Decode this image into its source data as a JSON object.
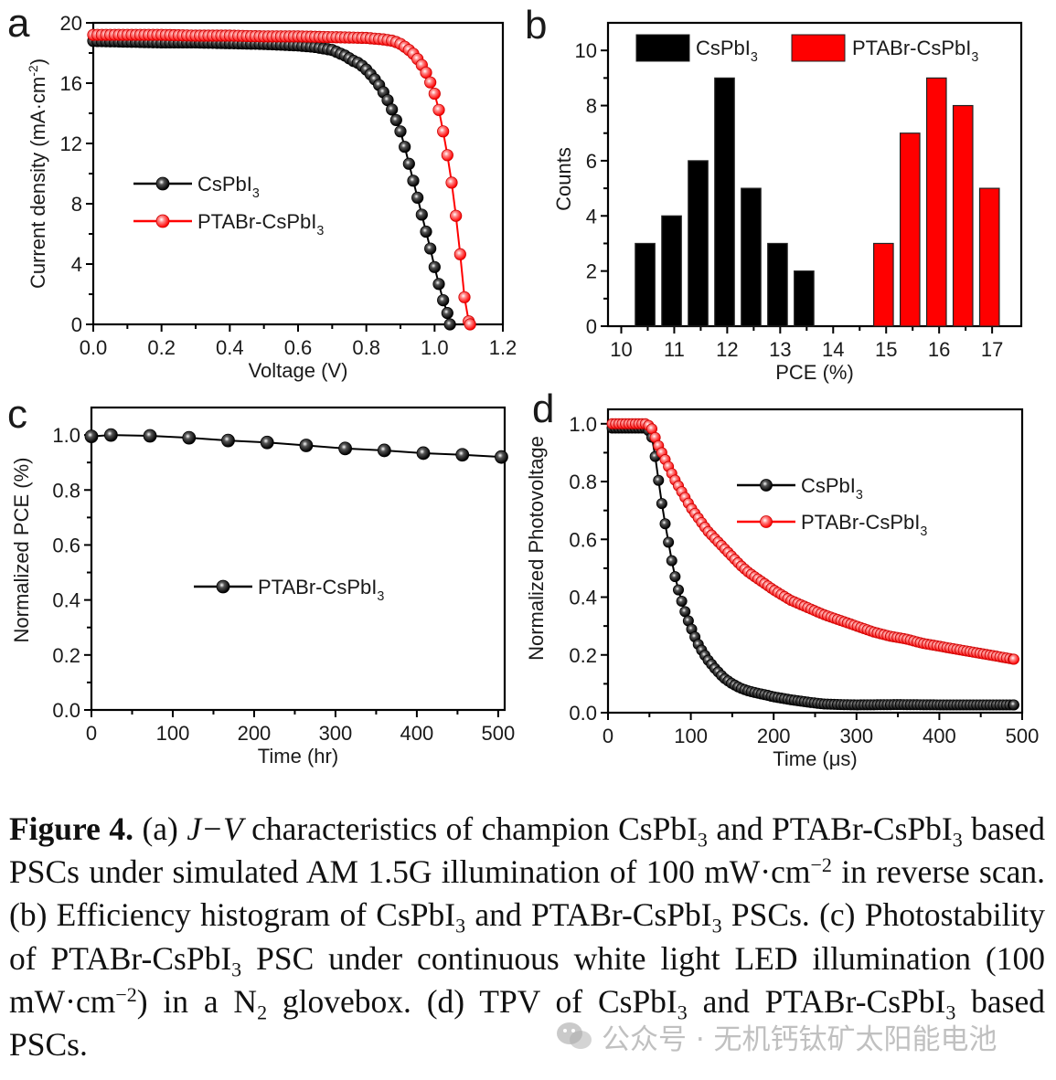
{
  "figure": {
    "panel_labels": [
      "a",
      "b",
      "c",
      "d"
    ]
  },
  "chart_data": [
    {
      "panel": "a",
      "type": "line",
      "title": "",
      "xlabel": "Voltage (V)",
      "ylabel": "Current density (mA·cm⁻²)",
      "ylabel_main": "Current density (mA·cm",
      "ylabel_sup": "-2",
      "ylabel_end": ")",
      "xlim": [
        0.0,
        1.2
      ],
      "ylim": [
        0,
        20
      ],
      "xticks": [
        "0.0",
        "0.2",
        "0.4",
        "0.6",
        "0.8",
        "1.0",
        "1.2"
      ],
      "xtick_values": [
        0.0,
        0.2,
        0.4,
        0.6,
        0.8,
        1.0,
        1.2
      ],
      "yticks": [
        "0",
        "4",
        "8",
        "12",
        "16",
        "20"
      ],
      "ytick_values": [
        0,
        4,
        8,
        12,
        16,
        20
      ],
      "legend_position": "center-left",
      "series": [
        {
          "name": "CsPbI3",
          "label_main": "CsPbI",
          "label_sub": "3",
          "color": "#000000",
          "x": [
            0.0,
            0.1,
            0.2,
            0.3,
            0.4,
            0.5,
            0.6,
            0.65,
            0.7,
            0.72,
            0.74,
            0.76,
            0.78,
            0.8,
            0.82,
            0.84,
            0.86,
            0.88,
            0.9,
            0.91,
            0.92,
            0.93,
            0.94,
            0.95,
            0.96,
            0.97,
            0.98,
            0.99,
            1.0,
            1.01,
            1.02,
            1.03,
            1.04,
            1.045
          ],
          "y": [
            18.8,
            18.75,
            18.7,
            18.7,
            18.65,
            18.6,
            18.5,
            18.4,
            18.2,
            18.0,
            17.8,
            17.5,
            17.3,
            16.9,
            16.4,
            15.8,
            15.0,
            14.0,
            12.8,
            12.0,
            11.1,
            10.2,
            9.3,
            8.4,
            7.5,
            6.6,
            5.7,
            4.8,
            3.8,
            2.9,
            2.0,
            1.2,
            0.6,
            0.0
          ]
        },
        {
          "name": "PTABr-CsPbI3",
          "label_main": "PTABr-CsPbI",
          "label_sub": "3",
          "color": "#ff0000",
          "x": [
            0.0,
            0.1,
            0.2,
            0.3,
            0.4,
            0.5,
            0.6,
            0.7,
            0.8,
            0.85,
            0.88,
            0.9,
            0.92,
            0.94,
            0.96,
            0.98,
            1.0,
            1.01,
            1.02,
            1.03,
            1.04,
            1.05,
            1.06,
            1.07,
            1.08,
            1.09,
            1.1,
            1.104
          ],
          "y": [
            19.2,
            19.2,
            19.2,
            19.15,
            19.15,
            19.1,
            19.1,
            19.05,
            19.0,
            18.9,
            18.8,
            18.6,
            18.3,
            17.9,
            17.3,
            16.5,
            15.3,
            14.5,
            13.4,
            12.2,
            10.9,
            9.4,
            7.7,
            5.7,
            3.6,
            1.2,
            0.2,
            0.0
          ]
        }
      ]
    },
    {
      "panel": "b",
      "type": "bar",
      "title": "",
      "xlabel": "PCE (%)",
      "ylabel": "Counts",
      "xlim": [
        9.75,
        17.55
      ],
      "ylim": [
        0,
        11
      ],
      "xticks": [
        "10",
        "11",
        "12",
        "13",
        "14",
        "15",
        "16",
        "17"
      ],
      "xtick_values": [
        10,
        11,
        12,
        13,
        14,
        15,
        16,
        17
      ],
      "yticks": [
        "0",
        "2",
        "4",
        "6",
        "8",
        "10"
      ],
      "ytick_values": [
        0,
        2,
        4,
        6,
        8,
        10
      ],
      "legend_position": "top",
      "bin_width": 0.5,
      "series": [
        {
          "name": "CsPbI3",
          "label_main": "CsPbI",
          "label_sub": "3",
          "color": "#000000",
          "bin_centers": [
            10.45,
            10.95,
            11.45,
            11.95,
            12.45,
            12.95,
            13.45
          ],
          "values": [
            3,
            4,
            6,
            9,
            5,
            3,
            2
          ]
        },
        {
          "name": "PTABr-CsPbI3",
          "label_main": "PTABr-CsPbI",
          "label_sub": "3",
          "color": "#ff0000",
          "bin_centers": [
            14.95,
            15.45,
            15.95,
            16.45,
            16.95
          ],
          "values": [
            3,
            7,
            9,
            8,
            5
          ]
        }
      ]
    },
    {
      "panel": "c",
      "type": "line",
      "title": "",
      "xlabel": "Time (hr)",
      "ylabel": "Normalized PCE (%)",
      "xlim": [
        0,
        508
      ],
      "ylim": [
        0,
        1.1
      ],
      "xticks": [
        "0",
        "100",
        "200",
        "300",
        "400",
        "500"
      ],
      "xtick_values": [
        0,
        100,
        200,
        300,
        400,
        500
      ],
      "yticks": [
        "0.0",
        "0.2",
        "0.4",
        "0.6",
        "0.8",
        "1.0"
      ],
      "ytick_values": [
        0.0,
        0.2,
        0.4,
        0.6,
        0.8,
        1.0
      ],
      "legend_position": "center",
      "series": [
        {
          "name": "PTABr-CsPbI3",
          "label_main": "PTABr-CsPbI",
          "label_sub": "3",
          "color": "#000000",
          "x": [
            0,
            24,
            72,
            120,
            168,
            216,
            264,
            312,
            360,
            408,
            456,
            504
          ],
          "y": [
            0.995,
            1.0,
            0.997,
            0.99,
            0.98,
            0.973,
            0.962,
            0.951,
            0.944,
            0.934,
            0.928,
            0.92
          ]
        }
      ]
    },
    {
      "panel": "d",
      "type": "line",
      "title": "",
      "xlabel": "Time (μs)",
      "ylabel": "Normalized Photovoltage",
      "xlim": [
        0,
        500
      ],
      "ylim": [
        0,
        1.05
      ],
      "xticks": [
        "0",
        "100",
        "200",
        "300",
        "400",
        "500"
      ],
      "xtick_values": [
        0,
        100,
        200,
        300,
        400,
        500
      ],
      "yticks": [
        "0.0",
        "0.2",
        "0.4",
        "0.6",
        "0.8",
        "1.0"
      ],
      "ytick_values": [
        0.0,
        0.2,
        0.4,
        0.6,
        0.8,
        1.0
      ],
      "legend_position": "top-right",
      "series": [
        {
          "name": "CsPbI3",
          "label_main": "CsPbI",
          "label_sub": "3",
          "color": "#000000",
          "model": "plateau 0.99 until 52 μs, then decay",
          "x": [
            5,
            15,
            25,
            35,
            45,
            52,
            58,
            63,
            68,
            73,
            78,
            83,
            88,
            93,
            98,
            103,
            110,
            120,
            130,
            140,
            150,
            160,
            170,
            180,
            190,
            200,
            220,
            240,
            260,
            280,
            300,
            350,
            400,
            450,
            490
          ],
          "y": [
            0.985,
            0.985,
            0.985,
            0.985,
            0.985,
            0.97,
            0.87,
            0.76,
            0.67,
            0.59,
            0.51,
            0.445,
            0.395,
            0.35,
            0.31,
            0.275,
            0.23,
            0.185,
            0.15,
            0.12,
            0.1,
            0.085,
            0.075,
            0.068,
            0.062,
            0.055,
            0.045,
            0.037,
            0.03,
            0.028,
            0.027,
            0.028,
            0.027,
            0.027,
            0.027
          ]
        },
        {
          "name": "PTABr-CsPbI3",
          "label_main": "PTABr-CsPbI",
          "label_sub": "3",
          "color": "#ff0000",
          "x": [
            5,
            15,
            25,
            35,
            45,
            52,
            56,
            60,
            65,
            70,
            80,
            90,
            100,
            110,
            120,
            130,
            140,
            150,
            160,
            170,
            180,
            190,
            200,
            220,
            240,
            260,
            280,
            300,
            320,
            340,
            360,
            380,
            400,
            420,
            440,
            460,
            480,
            490
          ],
          "y": [
            1.0,
            1.0,
            1.0,
            1.0,
            1.0,
            0.99,
            0.96,
            0.93,
            0.9,
            0.87,
            0.81,
            0.76,
            0.71,
            0.67,
            0.63,
            0.6,
            0.57,
            0.54,
            0.51,
            0.485,
            0.465,
            0.445,
            0.425,
            0.39,
            0.365,
            0.34,
            0.32,
            0.3,
            0.28,
            0.265,
            0.255,
            0.24,
            0.23,
            0.22,
            0.21,
            0.2,
            0.19,
            0.185
          ]
        }
      ]
    }
  ],
  "caption": {
    "figure_label": "Figure 4.",
    "segments": [
      {
        "t": " (a) "
      },
      {
        "t": "J−V",
        "style": "i"
      },
      {
        "t": " characteristics of champion CsPbI"
      },
      {
        "t": "3",
        "style": "sub"
      },
      {
        "t": " and PTABr-CsPbI"
      },
      {
        "t": "3",
        "style": "sub"
      },
      {
        "t": " based PSCs under simulated AM 1.5G illumination of 100 mW·cm"
      },
      {
        "t": "−2",
        "style": "sup"
      },
      {
        "t": " in reverse scan. (b) Efficiency histogram of CsPbI"
      },
      {
        "t": "3",
        "style": "sub"
      },
      {
        "t": " and PTABr-CsPbI"
      },
      {
        "t": "3",
        "style": "sub"
      },
      {
        "t": " PSCs. (c) Photostability of PTABr-CsPbI"
      },
      {
        "t": "3",
        "style": "sub"
      },
      {
        "t": " PSC under continuous white light LED illumination (100 mW·cm"
      },
      {
        "t": "−2",
        "style": "sup"
      },
      {
        "t": ") in a N"
      },
      {
        "t": "2",
        "style": "sub"
      },
      {
        "t": " glovebox. (d) TPV of CsPbI"
      },
      {
        "t": "3",
        "style": "sub"
      },
      {
        "t": " and PTABr-CsPbI"
      },
      {
        "t": "3",
        "style": "sub"
      },
      {
        "t": " based PSCs."
      }
    ]
  },
  "watermark": {
    "icon": "wechat-icon",
    "text": "公众号 · 无机钙钛矿太阳能电池"
  }
}
